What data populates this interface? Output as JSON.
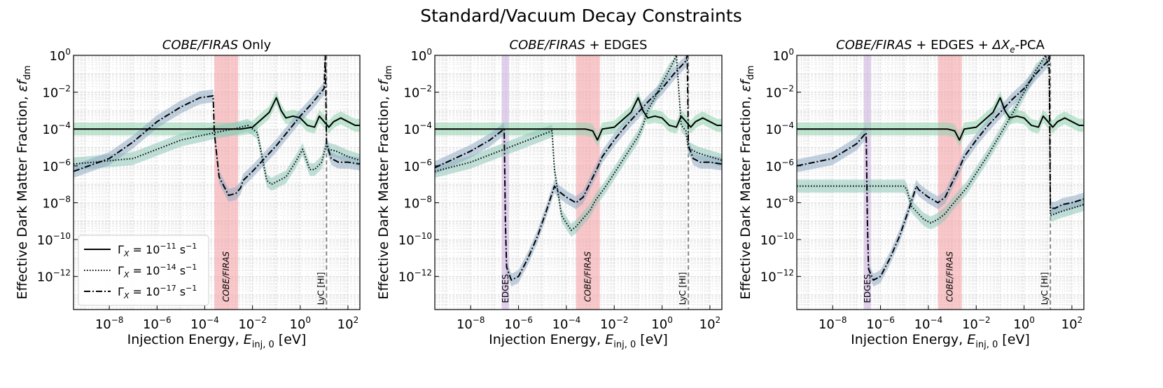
{
  "suptitle": "Standard/Vacuum Decay Constraints",
  "shared": {
    "xlabel_main": "Injection Energy, ",
    "xlabel_var": "E",
    "xlabel_sub": "inj, 0",
    "xlabel_unit": " [eV]",
    "ylabel_main": "Effective Dark Matter Fraction, ",
    "ylabel_var": "εf",
    "ylabel_sub": "dm",
    "xticks": [
      {
        "exp": -8,
        "base": "10",
        "sup": "−8"
      },
      {
        "exp": -6,
        "base": "10",
        "sup": "−6"
      },
      {
        "exp": -4,
        "base": "10",
        "sup": "−4"
      },
      {
        "exp": -2,
        "base": "10",
        "sup": "−2"
      },
      {
        "exp": 0,
        "base": "10",
        "sup": "0"
      },
      {
        "exp": 2,
        "base": "10",
        "sup": "2"
      }
    ],
    "yticks": [
      {
        "exp": 0,
        "base": "10",
        "sup": "0"
      },
      {
        "exp": -2,
        "base": "10",
        "sup": "−2"
      },
      {
        "exp": -4,
        "base": "10",
        "sup": "−4"
      },
      {
        "exp": -6,
        "base": "10",
        "sup": "−6"
      },
      {
        "exp": -8,
        "base": "10",
        "sup": "−8"
      },
      {
        "exp": -10,
        "base": "10",
        "sup": "−10"
      },
      {
        "exp": -12,
        "base": "10",
        "sup": "−12"
      }
    ],
    "band_labels": {
      "firas": "COBE/FIRAS",
      "edges": "EDGES",
      "lyc": "LyC [HI]"
    },
    "legend": [
      {
        "style": "solid",
        "prefix": "Γ",
        "sub": "X",
        "eq": " = 10",
        "sup": "−11",
        "unit": " s",
        "unit_sup": "−1"
      },
      {
        "style": "dotted",
        "prefix": "Γ",
        "sub": "X",
        "eq": " = 10",
        "sup": "−14",
        "unit": " s",
        "unit_sup": "−1"
      },
      {
        "style": "dashdot",
        "prefix": "Γ",
        "sub": "X",
        "eq": " = 10",
        "sup": "−17",
        "unit": " s",
        "unit_sup": "−1"
      }
    ],
    "colors": {
      "firas_band": "#f4a3a8",
      "edges_band": "#cdb0e0",
      "lyc_line": "#888888",
      "green_band": "#8fd4ae",
      "blue_band": "#90acc4",
      "teal_band": "#8ec7b8",
      "curves": "#000000",
      "grid": "#d9d9d9"
    }
  },
  "chart_data": [
    {
      "type": "line",
      "title_italic": "COBE/FIRAS",
      "title_rest": " Only",
      "xlabel": "Injection Energy, E_inj,0 [eV]",
      "ylabel": "Effective Dark Matter Fraction, εf_dm",
      "xscale": "log",
      "yscale": "log",
      "xlim": [
        -9.5,
        2.5
      ],
      "ylim": [
        -13.8,
        0
      ],
      "bands": {
        "firas": [
          -3.6,
          -2.6
        ],
        "edges": null,
        "lyc": 1.1
      },
      "series": [
        {
          "name": "ΓX = 1e-11 s^-1",
          "style": "solid",
          "log10_x": [
            -9.5,
            -4,
            -3.2,
            -2.5,
            -2,
            -1.3,
            -1,
            -0.8,
            -0.6,
            -0.3,
            0,
            0.3,
            0.6,
            0.8,
            1,
            1.2,
            1.4,
            1.7,
            2,
            2.3,
            2.5
          ],
          "log10_y": [
            -4,
            -4,
            -4,
            -4,
            -3.9,
            -3.1,
            -2.3,
            -3,
            -3.4,
            -3.3,
            -3.4,
            -3.8,
            -3.9,
            -3.3,
            -3.6,
            -3.9,
            -3.6,
            -3.4,
            -3.6,
            -3.8,
            -3.8
          ]
        },
        {
          "name": "ΓX = 1e-14 s^-1",
          "style": "dotted",
          "log10_x": [
            -9.5,
            -7,
            -5,
            -3.6,
            -2.8,
            -2.2,
            -1.8,
            -1.4,
            -1.2,
            -0.6,
            -0.2,
            0.1,
            0.4,
            0.6,
            0.9,
            1.1,
            1.2,
            1.5,
            2,
            2.5
          ],
          "log10_y": [
            -5.9,
            -5.6,
            -4.6,
            -4.2,
            -4,
            -3.8,
            -4.2,
            -6.8,
            -7,
            -6.6,
            -5.8,
            -5.1,
            -6.2,
            -6.2,
            -5.8,
            -4.8,
            -5.1,
            -5.2,
            -5.5,
            -5.7
          ]
        },
        {
          "name": "ΓX = 1e-17 s^-1",
          "style": "dashdot",
          "log10_x": [
            -9.5,
            -8,
            -7,
            -6,
            -5,
            -4.2,
            -3.65,
            -3.6,
            -3.4,
            -3,
            -2.7,
            -2.5,
            -2.4,
            -2,
            -1.5,
            -1,
            -0.5,
            0,
            0.5,
            1,
            1.05,
            1.1,
            1.3,
            1.6,
            2,
            2.5
          ],
          "log10_y": [
            -6.3,
            -5.6,
            -4.7,
            -3.6,
            -2.8,
            -2.3,
            -2.2,
            -4.2,
            -6.6,
            -7.6,
            -7.5,
            -7.2,
            -6.8,
            -6.3,
            -5.6,
            -4.9,
            -4.1,
            -3.3,
            -2.6,
            -1.8,
            0,
            -4.8,
            -5.6,
            -5.8,
            -5.8,
            -5.9
          ]
        }
      ]
    },
    {
      "type": "line",
      "title_italic": "COBE/FIRAS",
      "title_rest": " + EDGES",
      "xlabel": "Injection Energy, E_inj,0 [eV]",
      "ylabel": "Effective Dark Matter Fraction, εf_dm",
      "xscale": "log",
      "yscale": "log",
      "xlim": [
        -9.5,
        2.5
      ],
      "ylim": [
        -13.8,
        0
      ],
      "bands": {
        "firas": [
          -3.6,
          -2.6
        ],
        "edges": [
          -6.7,
          -6.4
        ],
        "lyc": 1.1
      },
      "series": [
        {
          "name": "ΓX = 1e-11 s^-1",
          "style": "solid",
          "log10_x": [
            -9.5,
            -3.2,
            -2.9,
            -2.7,
            -2.5,
            -2,
            -1.3,
            -1,
            -0.8,
            -0.6,
            -0.3,
            0,
            0.3,
            0.6,
            0.8,
            1,
            1.2,
            1.4,
            1.7,
            2,
            2.3,
            2.5
          ],
          "log10_y": [
            -4,
            -4,
            -4.1,
            -4.6,
            -4,
            -3.9,
            -3.1,
            -2.3,
            -3,
            -3.4,
            -3.3,
            -3.4,
            -3.8,
            -3.9,
            -3.3,
            -3.6,
            -3.9,
            -3.6,
            -3.4,
            -3.6,
            -3.8,
            -3.8
          ]
        },
        {
          "name": "ΓX = 1e-14 s^-1",
          "style": "dotted",
          "log10_x": [
            -9.5,
            -8,
            -7,
            -6,
            -5,
            -4.6,
            -4.5,
            -4.2,
            -3.8,
            -3.6,
            -3.4,
            -3,
            -2.8,
            -2.4,
            -2,
            -1.5,
            -1,
            -0.8,
            -0.6,
            -0.3,
            0,
            0.3,
            0.6,
            0.8,
            1,
            1.1,
            1.2,
            1.5,
            2,
            2.5
          ],
          "log10_y": [
            -6.3,
            -5.8,
            -5.3,
            -4.8,
            -4.3,
            -4.1,
            -6.2,
            -8.7,
            -9.5,
            -9.3,
            -9,
            -8.4,
            -7.9,
            -7.2,
            -6.4,
            -5.4,
            -4.4,
            -3.8,
            -3,
            -2.3,
            -1.5,
            -0.8,
            0,
            -3.8,
            -4.1,
            -5.1,
            -5.1,
            -5.3,
            -5.5,
            -5.7
          ]
        },
        {
          "name": "ΓX = 1e-17 s^-1",
          "style": "dashdot",
          "log10_x": [
            -9.5,
            -8,
            -7.2,
            -6.6,
            -6.55,
            -6.5,
            -6.3,
            -6,
            -5.6,
            -5.2,
            -4.8,
            -4.5,
            -4.4,
            -4,
            -3.6,
            -3.3,
            -3,
            -2.7,
            -2.5,
            -2,
            -1.5,
            -1,
            -0.5,
            0,
            0.5,
            1,
            1.05,
            1.1,
            1.3,
            1.6,
            2,
            2.5
          ],
          "log10_y": [
            -6.1,
            -5.2,
            -4.6,
            -4,
            -9,
            -11.5,
            -12.2,
            -12,
            -11,
            -9.8,
            -8.3,
            -7.1,
            -7.3,
            -7.7,
            -8,
            -7.7,
            -6.9,
            -6.1,
            -5.5,
            -4.6,
            -3.8,
            -3.1,
            -2.4,
            -1.8,
            -1,
            -0.3,
            0,
            -4.9,
            -5.6,
            -5.8,
            -5.8,
            -5.9
          ]
        }
      ]
    },
    {
      "type": "line",
      "title_italic": "COBE/FIRAS",
      "title_rest": " + EDGES + ",
      "title_extra_main": "ΔX",
      "title_extra_sub": "e",
      "title_extra_rest": "-PCA",
      "xlabel": "Injection Energy, E_inj,0 [eV]",
      "ylabel": "Effective Dark Matter Fraction, εf_dm",
      "xscale": "log",
      "yscale": "log",
      "xlim": [
        -9.5,
        2.5
      ],
      "ylim": [
        -13.8,
        0
      ],
      "bands": {
        "firas": [
          -3.6,
          -2.6
        ],
        "edges": [
          -6.7,
          -6.4
        ],
        "lyc": 1.1
      },
      "series": [
        {
          "name": "ΓX = 1e-11 s^-1",
          "style": "solid",
          "log10_x": [
            -9.5,
            -3.2,
            -2.9,
            -2.7,
            -2.5,
            -2,
            -1.3,
            -1,
            -0.8,
            -0.6,
            -0.3,
            0,
            0.3,
            0.6,
            0.8,
            1,
            1.2,
            1.4,
            1.7,
            2,
            2.3,
            2.5
          ],
          "log10_y": [
            -4,
            -4,
            -4.1,
            -4.6,
            -4,
            -3.9,
            -3.1,
            -2.3,
            -3,
            -3.4,
            -3.3,
            -3.4,
            -3.8,
            -3.9,
            -3.3,
            -3.6,
            -3.9,
            -3.6,
            -3.4,
            -3.6,
            -3.8,
            -3.8
          ]
        },
        {
          "name": "ΓX = 1e-14 s^-1",
          "style": "dotted",
          "log10_x": [
            -9.5,
            -5,
            -4.9,
            -4.7,
            -4.2,
            -3.9,
            -3.6,
            -3.3,
            -3,
            -2.8,
            -2.4,
            -2,
            -1.5,
            -1,
            -0.5,
            0,
            0.5,
            0.9,
            1.05,
            1.1,
            1.5,
            2.5
          ],
          "log10_y": [
            -7.1,
            -7.1,
            -7.3,
            -8.2,
            -8.9,
            -9.1,
            -8.9,
            -8.6,
            -8.1,
            -7.8,
            -7.2,
            -6.4,
            -5.4,
            -4.3,
            -3.2,
            -2,
            -0.8,
            0,
            -0.8,
            -8.7,
            -8.5,
            -8.1
          ]
        },
        {
          "name": "ΓX = 1e-17 s^-1",
          "style": "dashdot",
          "log10_x": [
            -9.5,
            -8,
            -7,
            -6.6,
            -6.55,
            -6.5,
            -6.3,
            -6,
            -5.6,
            -5.2,
            -4.8,
            -4.5,
            -4.4,
            -4,
            -3.6,
            -3.3,
            -3,
            -2.7,
            -2.5,
            -2,
            -1.5,
            -1,
            -0.5,
            0,
            0.5,
            1,
            1.05,
            1.1,
            1.3,
            1.6,
            2,
            2.5
          ],
          "log10_y": [
            -6,
            -5.6,
            -4.8,
            -4.2,
            -9,
            -11.6,
            -12.2,
            -12,
            -11,
            -9.8,
            -8.3,
            -7.1,
            -7.3,
            -7.7,
            -8,
            -7.7,
            -6.9,
            -6.1,
            -5.5,
            -4.6,
            -3.8,
            -3.1,
            -2.4,
            -1.8,
            -1,
            -0.3,
            0,
            -8.3,
            -8.3,
            -8.1,
            -8,
            -7.8
          ]
        }
      ]
    }
  ]
}
